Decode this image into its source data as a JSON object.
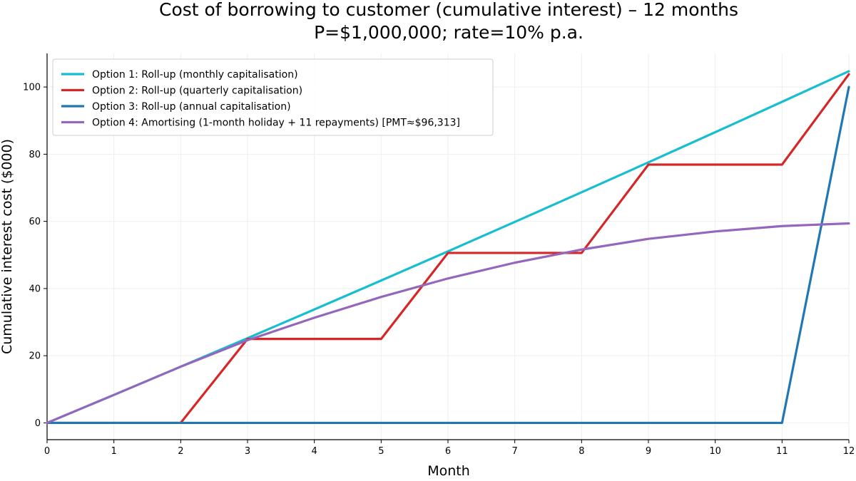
{
  "chart_data": {
    "type": "line",
    "title": "Cost of borrowing to customer (cumulative interest) – 12 months",
    "subtitle": "P=$1,000,000; rate=10% p.a.",
    "xlabel": "Month",
    "ylabel": "Cumulative interest cost ($000)",
    "xlim": [
      0,
      12
    ],
    "ylim": [
      -5,
      110
    ],
    "x_ticks": [
      0,
      1,
      2,
      3,
      4,
      5,
      6,
      7,
      8,
      9,
      10,
      11,
      12
    ],
    "y_ticks": [
      0,
      20,
      40,
      60,
      80,
      100
    ],
    "grid": true,
    "legend_position": "top-left",
    "x": [
      0,
      1,
      2,
      3,
      4,
      5,
      6,
      7,
      8,
      9,
      10,
      11,
      12
    ],
    "series": [
      {
        "name": "Option 1: Roll-up (monthly capitalisation)",
        "color": "#17becf",
        "values": [
          0,
          8.33,
          16.74,
          25.22,
          33.77,
          42.39,
          51.07,
          59.83,
          68.66,
          77.57,
          86.55,
          95.6,
          104.7
        ]
      },
      {
        "name": "Option 2: Roll-up (quarterly capitalisation)",
        "color": "#d62728",
        "values": [
          0,
          0,
          0,
          25.0,
          25.0,
          25.0,
          50.6,
          50.6,
          50.6,
          76.9,
          76.9,
          76.9,
          103.8
        ]
      },
      {
        "name": "Option 3: Roll-up (annual capitalisation)",
        "color": "#1f77b4",
        "values": [
          0,
          0,
          0,
          0,
          0,
          0,
          0,
          0,
          0,
          0,
          0,
          0,
          100.0
        ]
      },
      {
        "name": "Option 4: Amortising (1-month holiday + 11 repayments)  [PMT≈$96,313]",
        "color": "#9467bd",
        "values": [
          0,
          8.33,
          16.74,
          24.62,
          31.3,
          37.5,
          43.0,
          47.7,
          51.6,
          54.8,
          57.0,
          58.6,
          59.4
        ]
      }
    ]
  }
}
